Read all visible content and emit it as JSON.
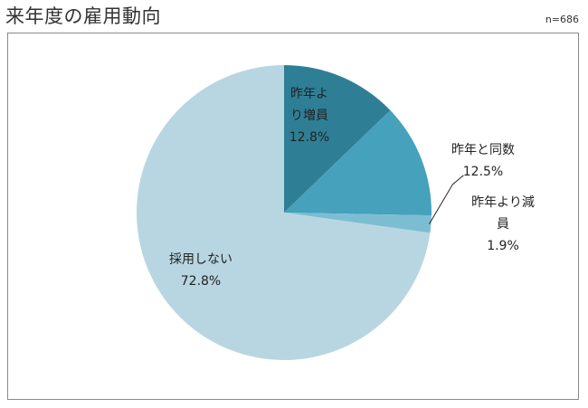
{
  "title": "来年度の雇用動向",
  "sample_size": "n=686",
  "chart_data": {
    "type": "pie",
    "title": "来年度の雇用動向",
    "note": "n=686",
    "start_angle_deg": 0,
    "direction": "clockwise",
    "slices": [
      {
        "label_lines": [
          "昨年よ",
          "り増員"
        ],
        "label": "昨年より増員",
        "value": 12.8,
        "value_label": "12.8%",
        "color": "#2e7f96"
      },
      {
        "label_lines": [
          "昨年と同数"
        ],
        "label": "昨年と同数",
        "value": 12.5,
        "value_label": "12.5%",
        "color": "#46a1bd"
      },
      {
        "label_lines": [
          "昨年より減",
          "員"
        ],
        "label": "昨年より減員",
        "value": 1.9,
        "value_label": "1.9%",
        "color": "#7dbdd2"
      },
      {
        "label_lines": [
          "採用しない"
        ],
        "label": "採用しない",
        "value": 72.8,
        "value_label": "72.8%",
        "color": "#b8d6e1"
      }
    ]
  }
}
